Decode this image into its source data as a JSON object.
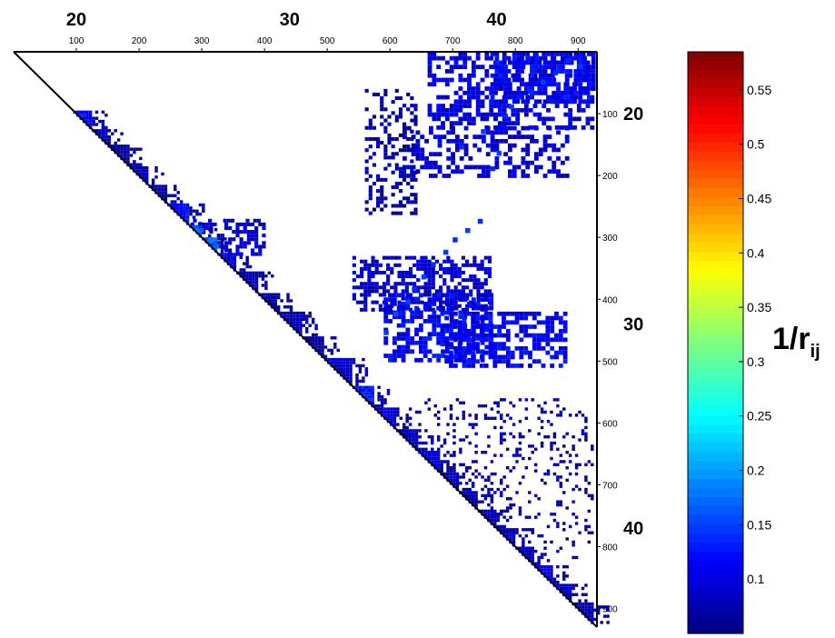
{
  "chart_data": {
    "type": "heatmap",
    "shape": "upper-triangular",
    "title": "",
    "matrix_index_range": [
      0,
      930
    ],
    "top_minor_ticks": [
      "100",
      "200",
      "300",
      "400",
      "500",
      "600",
      "700",
      "800",
      "900"
    ],
    "right_minor_ticks": [
      "100",
      "200",
      "300",
      "400",
      "500",
      "600",
      "700",
      "800",
      "900"
    ],
    "major_labels": [
      {
        "text": "20",
        "index": 100
      },
      {
        "text": "30",
        "index": 440
      },
      {
        "text": "40",
        "index": 770
      }
    ],
    "colorbar": {
      "title_main": "1/r",
      "title_sub": "ij",
      "range": [
        0.05,
        0.585
      ],
      "tick_labels": [
        "0.1",
        "0.15",
        "0.2",
        "0.25",
        "0.3",
        "0.35",
        "0.4",
        "0.45",
        "0.5",
        "0.55"
      ],
      "tick_values": [
        0.1,
        0.15,
        0.2,
        0.25,
        0.3,
        0.35,
        0.4,
        0.45,
        0.5,
        0.55
      ]
    },
    "diagonal_blocks": [
      {
        "from": 95,
        "to": 125,
        "v": 0.12
      },
      {
        "from": 125,
        "to": 150,
        "v": 0.09
      },
      {
        "from": 150,
        "to": 185,
        "v": 0.07
      },
      {
        "from": 185,
        "to": 215,
        "v": 0.08
      },
      {
        "from": 215,
        "to": 245,
        "v": 0.07
      },
      {
        "from": 245,
        "to": 280,
        "v": 0.12
      },
      {
        "from": 280,
        "to": 300,
        "v": 0.16
      },
      {
        "from": 300,
        "to": 325,
        "v": 0.17
      },
      {
        "from": 325,
        "to": 355,
        "v": 0.1
      },
      {
        "from": 355,
        "to": 390,
        "v": 0.08
      },
      {
        "from": 390,
        "to": 420,
        "v": 0.07
      },
      {
        "from": 420,
        "to": 460,
        "v": 0.08
      },
      {
        "from": 460,
        "to": 495,
        "v": 0.07
      },
      {
        "from": 495,
        "to": 540,
        "v": 0.09
      },
      {
        "from": 540,
        "to": 575,
        "v": 0.13
      },
      {
        "from": 575,
        "to": 610,
        "v": 0.1
      },
      {
        "from": 610,
        "to": 645,
        "v": 0.08
      },
      {
        "from": 645,
        "to": 680,
        "v": 0.1
      },
      {
        "from": 680,
        "to": 710,
        "v": 0.08
      },
      {
        "from": 710,
        "to": 740,
        "v": 0.08
      },
      {
        "from": 740,
        "to": 770,
        "v": 0.08
      },
      {
        "from": 770,
        "to": 800,
        "v": 0.08
      },
      {
        "from": 800,
        "to": 830,
        "v": 0.08
      },
      {
        "from": 830,
        "to": 860,
        "v": 0.09
      },
      {
        "from": 860,
        "to": 890,
        "v": 0.08
      },
      {
        "from": 890,
        "to": 925,
        "v": 0.08
      }
    ],
    "off_diagonal_regions": [
      {
        "i0": 270,
        "i1": 330,
        "j0": 280,
        "j1": 400,
        "v": 0.09,
        "density": 0.55,
        "stride": 6
      },
      {
        "i0": 330,
        "i1": 420,
        "j0": 540,
        "j1": 760,
        "v": 0.09,
        "density": 0.55,
        "stride": 6
      },
      {
        "i0": 390,
        "i1": 500,
        "j0": 590,
        "j1": 760,
        "v": 0.11,
        "density": 0.6,
        "stride": 7
      },
      {
        "i0": 420,
        "i1": 510,
        "j0": 680,
        "j1": 880,
        "v": 0.11,
        "density": 0.6,
        "stride": 7
      },
      {
        "i0": 120,
        "i1": 200,
        "j0": 620,
        "j1": 880,
        "v": 0.09,
        "density": 0.45,
        "stride": 7
      },
      {
        "i0": 0,
        "i1": 120,
        "j0": 660,
        "j1": 925,
        "v": 0.1,
        "density": 0.5,
        "stride": 7
      },
      {
        "i0": 0,
        "i1": 80,
        "j0": 760,
        "j1": 925,
        "v": 0.11,
        "density": 0.6,
        "stride": 7
      },
      {
        "i0": 60,
        "i1": 260,
        "j0": 560,
        "j1": 640,
        "v": 0.07,
        "density": 0.35,
        "stride": 6
      },
      {
        "i0": 560,
        "i1": 820,
        "j0": 640,
        "j1": 925,
        "v": 0.07,
        "density": 0.15,
        "stride": 5
      }
    ],
    "hotspots": [
      {
        "i": 10,
        "j": 880,
        "v": 0.14
      },
      {
        "i": 20,
        "j": 900,
        "v": 0.15
      },
      {
        "i": 30,
        "j": 860,
        "v": 0.14
      },
      {
        "i": 45,
        "j": 840,
        "v": 0.15
      },
      {
        "i": 60,
        "j": 820,
        "v": 0.14
      },
      {
        "i": 85,
        "j": 790,
        "v": 0.15
      },
      {
        "i": 100,
        "j": 780,
        "v": 0.14
      },
      {
        "i": 125,
        "j": 745,
        "v": 0.15
      },
      {
        "i": 150,
        "j": 710,
        "v": 0.14
      },
      {
        "i": 160,
        "j": 770,
        "v": 0.15
      },
      {
        "i": 185,
        "j": 760,
        "v": 0.14
      },
      {
        "i": 270,
        "j": 740,
        "v": 0.14
      },
      {
        "i": 285,
        "j": 720,
        "v": 0.15
      },
      {
        "i": 300,
        "j": 700,
        "v": 0.14
      },
      {
        "i": 320,
        "j": 685,
        "v": 0.15
      },
      {
        "i": 340,
        "j": 665,
        "v": 0.14
      },
      {
        "i": 360,
        "j": 650,
        "v": 0.15
      },
      {
        "i": 380,
        "j": 635,
        "v": 0.14
      },
      {
        "i": 400,
        "j": 625,
        "v": 0.15
      },
      {
        "i": 420,
        "j": 605,
        "v": 0.16
      },
      {
        "i": 450,
        "j": 590,
        "v": 0.15
      },
      {
        "i": 285,
        "j": 295,
        "v": 0.17
      },
      {
        "i": 300,
        "j": 310,
        "v": 0.18
      },
      {
        "i": 310,
        "j": 320,
        "v": 0.17
      },
      {
        "i": 250,
        "j": 270,
        "v": 0.13
      }
    ],
    "colors": {
      "triangle_outline": "#000000",
      "background": "#ffffff"
    }
  }
}
